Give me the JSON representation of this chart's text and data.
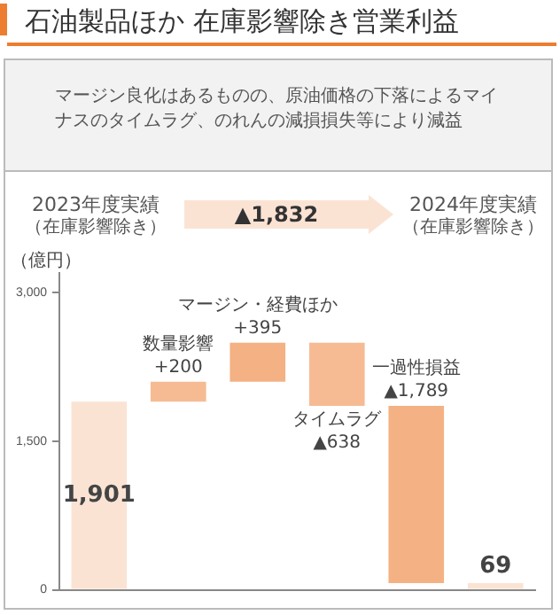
{
  "chart_data": {
    "type": "bar",
    "title": "石油製品ほか 在庫影響除き営業利益",
    "subtitle": "マージン良化はあるものの、原油価格の下落によるマイナスのタイムラグ、のれんの減損損失等により減益",
    "ylabel": "（億円）",
    "categories": [
      null,
      "数量影響",
      "マージン・経費ほか",
      "タイムラグ",
      "一過性損益",
      null
    ],
    "values": [
      1901,
      200,
      395,
      -638,
      -1789,
      69
    ],
    "base": [
      0,
      1901,
      2101,
      2496,
      1858,
      0
    ],
    "value_labels": [
      "1,901",
      "+200",
      "+395",
      "▲638",
      "▲1,789",
      "69"
    ],
    "colors": [
      "#fbe3d4",
      "#f6bb93",
      "#f4b183",
      "#f6bb93",
      "#f4b183",
      "#fbe3d4"
    ],
    "ylim": [
      0,
      3200
    ],
    "yticks": [
      {
        "value": 0,
        "label": "0"
      },
      {
        "value": 1500,
        "label": "1,500"
      },
      {
        "value": 3000,
        "label": "3,000"
      }
    ],
    "annotations": [
      "2023年度実績",
      "（在庫影響除き）",
      "▲1,832",
      "2024年度実績",
      "（在庫影響除き）"
    ],
    "grid": false,
    "legend": false
  }
}
